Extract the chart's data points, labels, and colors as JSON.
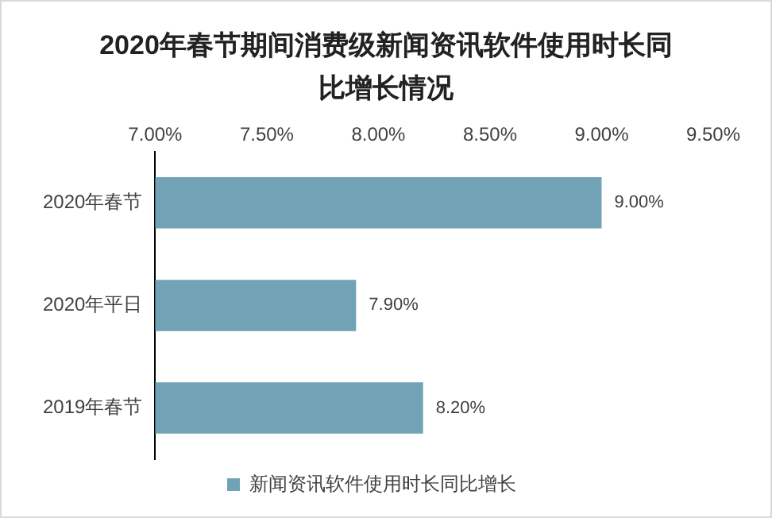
{
  "chart_data": {
    "type": "bar",
    "orientation": "horizontal",
    "title": "2020年春节期间消费级新闻资讯软件使用时长同比增长情况",
    "categories": [
      "2020年春节",
      "2020年平日",
      "2019年春节"
    ],
    "series": [
      {
        "name": "新闻资讯软件使用时长同比增长",
        "color": "#72a2b5",
        "values": [
          9.0,
          7.9,
          8.2
        ],
        "value_labels": [
          "9.00%",
          "7.90%",
          "8.20%"
        ]
      }
    ],
    "xlim": [
      7,
      9.5
    ],
    "xticks": [
      {
        "value": 7,
        "label": "7.00%"
      },
      {
        "value": 7.5,
        "label": "7.50%"
      },
      {
        "value": 8,
        "label": "8.00%"
      },
      {
        "value": 8.5,
        "label": "8.50%"
      },
      {
        "value": 9,
        "label": "9.00%"
      },
      {
        "value": 9.5,
        "label": "9.50%"
      }
    ],
    "grid": false,
    "legend": "bottom"
  }
}
